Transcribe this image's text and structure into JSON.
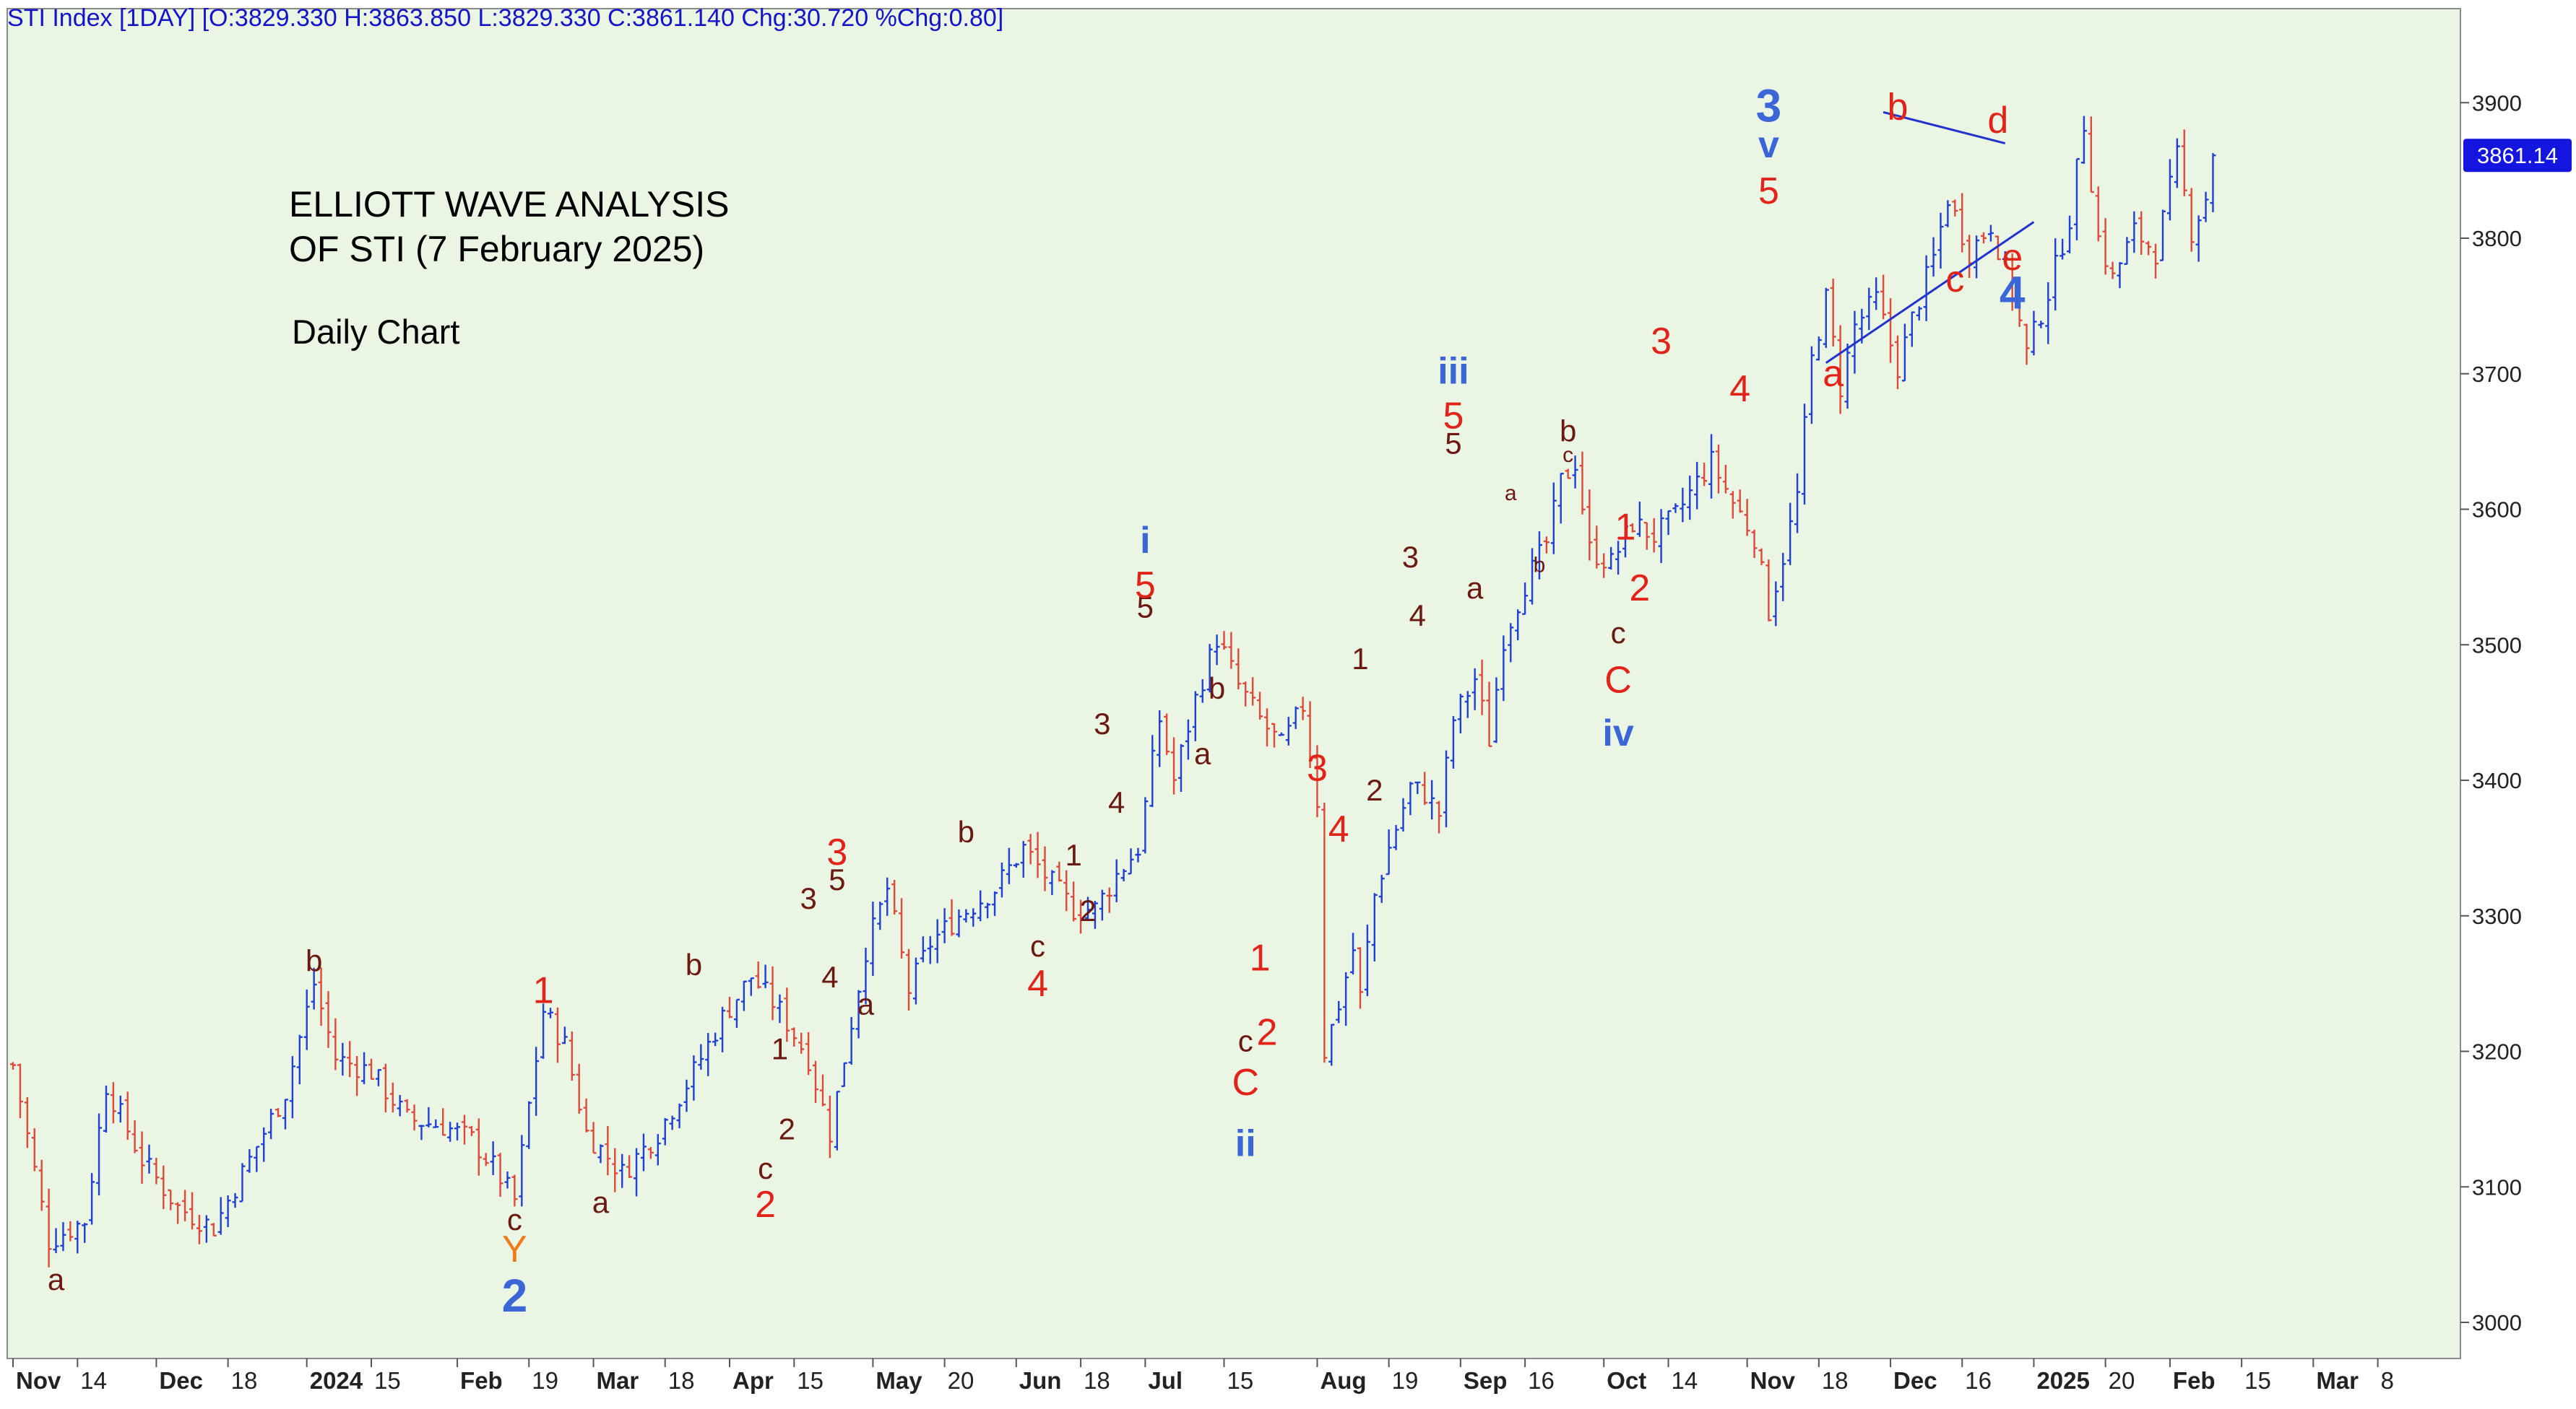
{
  "header": {
    "text": "STI Index [1DAY] [O:3829.330 H:3863.850 L:3829.330 C:3861.140 Chg:30.720 %Chg:0.80]"
  },
  "annotation": {
    "title_line1": "ELLIOTT WAVE ANALYSIS",
    "title_line2": "OF STI (7 February 2025)",
    "subtitle": "Daily Chart"
  },
  "colors": {
    "plot_background": "#eaf5e4",
    "up_bar": "#1f3fd6",
    "down_bar": "#e0483a",
    "wave_red": "#e2231a",
    "wave_dark": "#6b1a12",
    "wave_blue": "#3a66d8",
    "wave_orange": "#f07a1c",
    "trendline": "#2233cc",
    "last_price_bg": "#1515e0"
  },
  "chart_data": {
    "type": "ohlc",
    "symbol": "STI Index",
    "interval": "1DAY",
    "ylim": [
      2980,
      3930
    ],
    "last_price_label": "3861.14",
    "y_ticks": [
      3000,
      3100,
      3200,
      3300,
      3400,
      3500,
      3600,
      3700,
      3800,
      3900
    ],
    "x_axis_labels": [
      {
        "day": 0,
        "text": "Nov",
        "bold": true
      },
      {
        "day": 9,
        "text": "14",
        "bold": false
      },
      {
        "day": 20,
        "text": "Dec",
        "bold": true
      },
      {
        "day": 30,
        "text": "18",
        "bold": false
      },
      {
        "day": 41,
        "text": "2024",
        "bold": true
      },
      {
        "day": 50,
        "text": "15",
        "bold": false
      },
      {
        "day": 62,
        "text": "Feb",
        "bold": true
      },
      {
        "day": 72,
        "text": "19",
        "bold": false
      },
      {
        "day": 81,
        "text": "Mar",
        "bold": true
      },
      {
        "day": 91,
        "text": "18",
        "bold": false
      },
      {
        "day": 100,
        "text": "Apr",
        "bold": true
      },
      {
        "day": 109,
        "text": "15",
        "bold": false
      },
      {
        "day": 120,
        "text": "May",
        "bold": true
      },
      {
        "day": 130,
        "text": "20",
        "bold": false
      },
      {
        "day": 140,
        "text": "Jun",
        "bold": true
      },
      {
        "day": 149,
        "text": "18",
        "bold": false
      },
      {
        "day": 158,
        "text": "Jul",
        "bold": true
      },
      {
        "day": 169,
        "text": "15",
        "bold": false
      },
      {
        "day": 182,
        "text": "Aug",
        "bold": true
      },
      {
        "day": 192,
        "text": "19",
        "bold": false
      },
      {
        "day": 202,
        "text": "Sep",
        "bold": true
      },
      {
        "day": 211,
        "text": "16",
        "bold": false
      },
      {
        "day": 222,
        "text": "Oct",
        "bold": true
      },
      {
        "day": 231,
        "text": "14",
        "bold": false
      },
      {
        "day": 242,
        "text": "Nov",
        "bold": true
      },
      {
        "day": 252,
        "text": "18",
        "bold": false
      },
      {
        "day": 262,
        "text": "Dec",
        "bold": true
      },
      {
        "day": 272,
        "text": "16",
        "bold": false
      },
      {
        "day": 282,
        "text": "2025",
        "bold": true
      },
      {
        "day": 292,
        "text": "20",
        "bold": false
      },
      {
        "day": 301,
        "text": "Feb",
        "bold": true
      },
      {
        "day": 311,
        "text": "15",
        "bold": false
      },
      {
        "day": 321,
        "text": "Mar",
        "bold": true
      },
      {
        "day": 330,
        "text": "8",
        "bold": false
      }
    ],
    "price_path": [
      [
        0,
        3190
      ],
      [
        5,
        3060
      ],
      [
        10,
        3075
      ],
      [
        13,
        3175
      ],
      [
        18,
        3120
      ],
      [
        23,
        3085
      ],
      [
        28,
        3070
      ],
      [
        33,
        3120
      ],
      [
        38,
        3170
      ],
      [
        42,
        3250
      ],
      [
        45,
        3195
      ],
      [
        50,
        3185
      ],
      [
        55,
        3150
      ],
      [
        60,
        3145
      ],
      [
        64,
        3135
      ],
      [
        67,
        3115
      ],
      [
        70,
        3090
      ],
      [
        74,
        3230
      ],
      [
        77,
        3205
      ],
      [
        80,
        3140
      ],
      [
        85,
        3110
      ],
      [
        90,
        3140
      ],
      [
        95,
        3185
      ],
      [
        99,
        3225
      ],
      [
        103,
        3255
      ],
      [
        107,
        3230
      ],
      [
        111,
        3195
      ],
      [
        114,
        3140
      ],
      [
        116,
        3195
      ],
      [
        119,
        3275
      ],
      [
        122,
        3320
      ],
      [
        125,
        3245
      ],
      [
        128,
        3280
      ],
      [
        132,
        3300
      ],
      [
        137,
        3320
      ],
      [
        141,
        3350
      ],
      [
        144,
        3330
      ],
      [
        148,
        3305
      ],
      [
        151,
        3305
      ],
      [
        154,
        3330
      ],
      [
        157,
        3350
      ],
      [
        160,
        3445
      ],
      [
        162,
        3400
      ],
      [
        165,
        3460
      ],
      [
        168,
        3505
      ],
      [
        171,
        3470
      ],
      [
        174,
        3445
      ],
      [
        177,
        3425
      ],
      [
        180,
        3455
      ],
      [
        182,
        3385
      ],
      [
        183,
        3200
      ],
      [
        185,
        3235
      ],
      [
        187,
        3275
      ],
      [
        188,
        3240
      ],
      [
        190,
        3315
      ],
      [
        192,
        3350
      ],
      [
        195,
        3395
      ],
      [
        197,
        3390
      ],
      [
        199,
        3375
      ],
      [
        201,
        3445
      ],
      [
        204,
        3475
      ],
      [
        206,
        3430
      ],
      [
        208,
        3505
      ],
      [
        211,
        3545
      ],
      [
        214,
        3575
      ],
      [
        216,
        3620
      ],
      [
        218,
        3635
      ],
      [
        220,
        3570
      ],
      [
        223,
        3560
      ],
      [
        226,
        3590
      ],
      [
        229,
        3580
      ],
      [
        232,
        3595
      ],
      [
        235,
        3620
      ],
      [
        237,
        3635
      ],
      [
        240,
        3605
      ],
      [
        243,
        3580
      ],
      [
        245,
        3525
      ],
      [
        247,
        3565
      ],
      [
        249,
        3610
      ],
      [
        251,
        3710
      ],
      [
        253,
        3755
      ],
      [
        255,
        3690
      ],
      [
        257,
        3735
      ],
      [
        260,
        3755
      ],
      [
        263,
        3705
      ],
      [
        265,
        3740
      ],
      [
        268,
        3785
      ],
      [
        270,
        3830
      ],
      [
        273,
        3790
      ],
      [
        276,
        3810
      ],
      [
        279,
        3760
      ],
      [
        281,
        3715
      ],
      [
        284,
        3760
      ],
      [
        287,
        3815
      ],
      [
        289,
        3885
      ],
      [
        291,
        3800
      ],
      [
        293,
        3770
      ],
      [
        296,
        3805
      ],
      [
        299,
        3790
      ],
      [
        302,
        3860
      ],
      [
        304,
        3805
      ],
      [
        306,
        3830
      ],
      [
        307,
        3861
      ]
    ],
    "wave_labels": [
      {
        "day": 6,
        "price": 3030,
        "text": "a",
        "color": "dark",
        "size": "m"
      },
      {
        "day": 42,
        "price": 3265,
        "text": "b",
        "color": "dark",
        "size": "m"
      },
      {
        "day": 70,
        "price": 3074,
        "text": "c",
        "color": "dark",
        "size": "m"
      },
      {
        "day": 70,
        "price": 3052,
        "text": "Y",
        "color": "orange",
        "size": "l"
      },
      {
        "day": 70,
        "price": 3017,
        "text": "2",
        "color": "blue",
        "size": "xl"
      },
      {
        "day": 74,
        "price": 3243,
        "text": "1",
        "color": "red",
        "size": "l"
      },
      {
        "day": 82,
        "price": 3087,
        "text": "a",
        "color": "dark",
        "size": "m"
      },
      {
        "day": 95,
        "price": 3262,
        "text": "b",
        "color": "dark",
        "size": "m"
      },
      {
        "day": 105,
        "price": 3112,
        "text": "c",
        "color": "dark",
        "size": "m"
      },
      {
        "day": 105,
        "price": 3085,
        "text": "2",
        "color": "red",
        "size": "l"
      },
      {
        "day": 107,
        "price": 3200,
        "text": "1",
        "color": "dark",
        "size": "m"
      },
      {
        "day": 108,
        "price": 3141,
        "text": "2",
        "color": "dark",
        "size": "m"
      },
      {
        "day": 111,
        "price": 3311,
        "text": "3",
        "color": "dark",
        "size": "m"
      },
      {
        "day": 114,
        "price": 3253,
        "text": "4",
        "color": "dark",
        "size": "m"
      },
      {
        "day": 115,
        "price": 3325,
        "text": "5",
        "color": "dark",
        "size": "m"
      },
      {
        "day": 115,
        "price": 3345,
        "text": "3",
        "color": "red",
        "size": "l"
      },
      {
        "day": 119,
        "price": 3233,
        "text": "a",
        "color": "dark",
        "size": "m"
      },
      {
        "day": 133,
        "price": 3360,
        "text": "b",
        "color": "dark",
        "size": "m"
      },
      {
        "day": 143,
        "price": 3276,
        "text": "c",
        "color": "dark",
        "size": "m"
      },
      {
        "day": 143,
        "price": 3248,
        "text": "4",
        "color": "red",
        "size": "l"
      },
      {
        "day": 148,
        "price": 3343,
        "text": "1",
        "color": "dark",
        "size": "m"
      },
      {
        "day": 150,
        "price": 3302,
        "text": "2",
        "color": "dark",
        "size": "m"
      },
      {
        "day": 152,
        "price": 3440,
        "text": "3",
        "color": "dark",
        "size": "m"
      },
      {
        "day": 154,
        "price": 3382,
        "text": "4",
        "color": "dark",
        "size": "m"
      },
      {
        "day": 158,
        "price": 3526,
        "text": "5",
        "color": "dark",
        "size": "m"
      },
      {
        "day": 158,
        "price": 3542,
        "text": "5",
        "color": "red",
        "size": "l"
      },
      {
        "day": 158,
        "price": 3575,
        "text": "i",
        "color": "blue",
        "size": "l"
      },
      {
        "day": 166,
        "price": 3418,
        "text": "a",
        "color": "dark",
        "size": "m"
      },
      {
        "day": 168,
        "price": 3466,
        "text": "b",
        "color": "dark",
        "size": "m"
      },
      {
        "day": 172,
        "price": 3206,
        "text": "c",
        "color": "dark",
        "size": "m"
      },
      {
        "day": 172,
        "price": 3175,
        "text": "C",
        "color": "red",
        "size": "l"
      },
      {
        "day": 172,
        "price": 3130,
        "text": "ii",
        "color": "blue",
        "size": "l"
      },
      {
        "day": 174,
        "price": 3267,
        "text": "1",
        "color": "red",
        "size": "l"
      },
      {
        "day": 175,
        "price": 3212,
        "text": "2",
        "color": "red",
        "size": "l"
      },
      {
        "day": 182,
        "price": 3407,
        "text": "3",
        "color": "red",
        "size": "l"
      },
      {
        "day": 185,
        "price": 3362,
        "text": "4",
        "color": "red",
        "size": "l"
      },
      {
        "day": 188,
        "price": 3488,
        "text": "1",
        "color": "dark",
        "size": "m"
      },
      {
        "day": 190,
        "price": 3391,
        "text": "2",
        "color": "dark",
        "size": "m"
      },
      {
        "day": 195,
        "price": 3563,
        "text": "3",
        "color": "dark",
        "size": "m"
      },
      {
        "day": 196,
        "price": 3520,
        "text": "4",
        "color": "dark",
        "size": "m"
      },
      {
        "day": 201,
        "price": 3647,
        "text": "5",
        "color": "dark",
        "size": "m"
      },
      {
        "day": 201,
        "price": 3667,
        "text": "5",
        "color": "red",
        "size": "l"
      },
      {
        "day": 201,
        "price": 3700,
        "text": "iii",
        "color": "blue",
        "size": "l"
      },
      {
        "day": 204,
        "price": 3540,
        "text": "a",
        "color": "dark",
        "size": "m"
      },
      {
        "day": 209,
        "price": 3611,
        "text": "a",
        "color": "dark",
        "size": "s"
      },
      {
        "day": 213,
        "price": 3558,
        "text": "b",
        "color": "dark",
        "size": "s"
      },
      {
        "day": 217,
        "price": 3639,
        "text": "c",
        "color": "dark",
        "size": "s"
      },
      {
        "day": 217,
        "price": 3656,
        "text": "b",
        "color": "dark",
        "size": "m"
      },
      {
        "day": 225,
        "price": 3585,
        "text": "1",
        "color": "red",
        "size": "l"
      },
      {
        "day": 227,
        "price": 3540,
        "text": "2",
        "color": "red",
        "size": "l"
      },
      {
        "day": 224,
        "price": 3507,
        "text": "c",
        "color": "dark",
        "size": "m"
      },
      {
        "day": 224,
        "price": 3472,
        "text": "C",
        "color": "red",
        "size": "l"
      },
      {
        "day": 224,
        "price": 3433,
        "text": "iv",
        "color": "blue",
        "size": "l"
      },
      {
        "day": 230,
        "price": 3722,
        "text": "3",
        "color": "red",
        "size": "l"
      },
      {
        "day": 241,
        "price": 3687,
        "text": "4",
        "color": "red",
        "size": "l"
      },
      {
        "day": 245,
        "price": 3833,
        "text": "5",
        "color": "red",
        "size": "l"
      },
      {
        "day": 245,
        "price": 3867,
        "text": "v",
        "color": "blue",
        "size": "l"
      },
      {
        "day": 245,
        "price": 3895,
        "text": "3",
        "color": "blue",
        "size": "xl"
      },
      {
        "day": 254,
        "price": 3698,
        "text": "a",
        "color": "red",
        "size": "l"
      },
      {
        "day": 263,
        "price": 3895,
        "text": "b",
        "color": "red",
        "size": "l"
      },
      {
        "day": 271,
        "price": 3768,
        "text": "c",
        "color": "red",
        "size": "l"
      },
      {
        "day": 277,
        "price": 3885,
        "text": "d",
        "color": "red",
        "size": "l"
      },
      {
        "day": 279,
        "price": 3784,
        "text": "e",
        "color": "red",
        "size": "l"
      },
      {
        "day": 279,
        "price": 3757,
        "text": "4",
        "color": "blue",
        "size": "xl"
      }
    ],
    "trendlines": [
      {
        "from": [
          261,
          3893
        ],
        "to": [
          278,
          3870
        ]
      },
      {
        "from": [
          253,
          3708
        ],
        "to": [
          282,
          3812
        ]
      }
    ]
  }
}
